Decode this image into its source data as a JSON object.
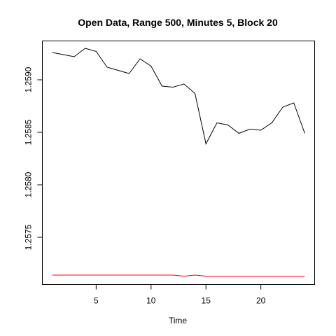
{
  "chart_data": {
    "type": "line",
    "title": "Open Data, Range 500, Minutes 5, Block 20",
    "xlabel": "Time",
    "ylabel": "",
    "xlim": [
      0.1,
      24.9
    ],
    "ylim": [
      1.25705,
      1.25937
    ],
    "xticks": [
      5,
      10,
      15,
      20
    ],
    "yticks": [
      1.2575,
      1.258,
      1.2585,
      1.259
    ],
    "xtick_labels": [
      "5",
      "10",
      "15",
      "20"
    ],
    "ytick_labels": [
      "1.2575",
      "1.2580",
      "1.2585",
      "1.2590"
    ],
    "grid": false,
    "series": [
      {
        "color": "#000000",
        "x": [
          1,
          2,
          3,
          4,
          5,
          6,
          7,
          8,
          9,
          10,
          11,
          12,
          13,
          14,
          15,
          16,
          17,
          18,
          19,
          20,
          21,
          22,
          23,
          24
        ],
        "values": [
          1.25926,
          1.25924,
          1.25922,
          1.2593,
          1.25927,
          1.25912,
          1.25909,
          1.25906,
          1.2592,
          1.25913,
          1.25894,
          1.25893,
          1.25896,
          1.25887,
          1.25839,
          1.25859,
          1.25857,
          1.25849,
          1.25853,
          1.25852,
          1.25859,
          1.25874,
          1.25878,
          1.25849
        ]
      },
      {
        "color": "#ff0000",
        "x": [
          1,
          2,
          3,
          4,
          5,
          6,
          7,
          8,
          9,
          10,
          11,
          12,
          13,
          14,
          15,
          16,
          17,
          18,
          19,
          20,
          21,
          22,
          23,
          24
        ],
        "values": [
          1.25714,
          1.25714,
          1.25714,
          1.25714,
          1.25714,
          1.25714,
          1.25714,
          1.25714,
          1.25714,
          1.25714,
          1.25714,
          1.25714,
          1.25713,
          1.25714,
          1.25713,
          1.25713,
          1.25713,
          1.25713,
          1.25713,
          1.25713,
          1.25713,
          1.25713,
          1.25713,
          1.25713
        ]
      }
    ]
  }
}
